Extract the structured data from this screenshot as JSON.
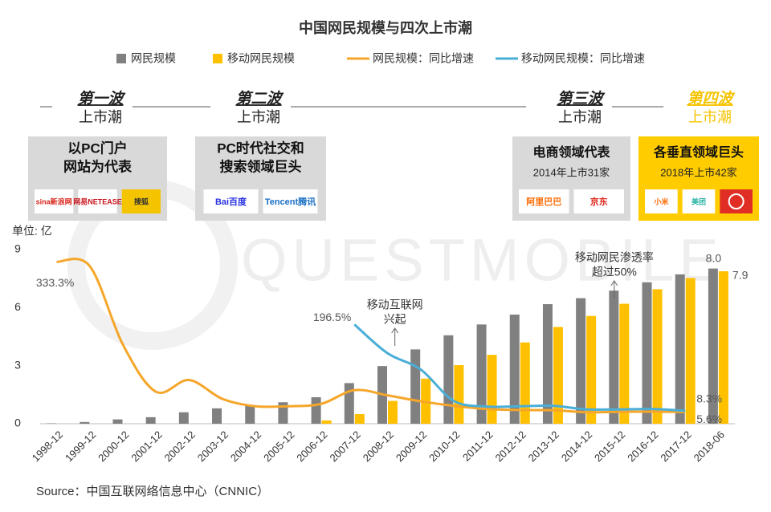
{
  "chart_data": {
    "type": "bar_line",
    "title": "中国网民规模与四次上市潮",
    "y_unit": "单位: 亿",
    "watermark": "QUESTMOBILE",
    "source": "Source：中国互联网络信息中心（CNNIC）",
    "categories": [
      "1998-12",
      "1999-12",
      "2000-12",
      "2001-12",
      "2002-12",
      "2003-12",
      "2004-12",
      "2005-12",
      "2006-12",
      "2007-12",
      "2008-12",
      "2009-12",
      "2010-12",
      "2011-12",
      "2012-12",
      "2013-12",
      "2014-12",
      "2015-12",
      "2016-12",
      "2017-12",
      "2018-06"
    ],
    "ylim": [
      0,
      9
    ],
    "yticks": [
      0,
      3,
      6,
      9
    ],
    "y2lim": [
      -20,
      360
    ],
    "series": [
      {
        "name": "网民规模",
        "kind": "bar",
        "color": "#808080",
        "values": [
          0.021,
          0.089,
          0.225,
          0.337,
          0.591,
          0.795,
          0.94,
          1.11,
          1.37,
          2.1,
          2.98,
          3.84,
          4.57,
          5.13,
          5.64,
          6.18,
          6.49,
          6.88,
          7.31,
          7.72,
          8.02
        ],
        "value_labels": [
          null,
          null,
          null,
          null,
          null,
          null,
          null,
          null,
          null,
          null,
          null,
          null,
          null,
          null,
          null,
          null,
          null,
          null,
          null,
          null,
          "8.0"
        ]
      },
      {
        "name": "移动网民规模",
        "kind": "bar",
        "color": "#ffc000",
        "values": [
          null,
          null,
          null,
          null,
          null,
          null,
          null,
          null,
          0.17,
          0.5,
          1.18,
          2.33,
          3.03,
          3.56,
          4.2,
          5.0,
          5.57,
          6.2,
          6.95,
          7.53,
          7.88
        ],
        "value_labels": [
          null,
          null,
          null,
          null,
          null,
          null,
          null,
          null,
          null,
          null,
          null,
          null,
          null,
          null,
          null,
          null,
          null,
          null,
          null,
          null,
          "7.9"
        ]
      },
      {
        "name": "网民规模：同比增速",
        "kind": "line",
        "axis": "y2",
        "color": "#f5a62a",
        "values": [
          333.3,
          323.8,
          152.8,
          49.8,
          75.4,
          34.5,
          18.2,
          18.1,
          23.4,
          53.3,
          41.9,
          28.9,
          19.0,
          12.2,
          9.9,
          9.5,
          5.0,
          6.1,
          6.2,
          5.6,
          null
        ],
        "value_labels": [
          "333.3%",
          null,
          null,
          null,
          null,
          null,
          null,
          null,
          null,
          null,
          null,
          null,
          null,
          null,
          null,
          null,
          null,
          null,
          null,
          "5.6%",
          null
        ]
      },
      {
        "name": "移动网民规模：同比增速",
        "kind": "line",
        "axis": "y2",
        "color": "#4aaed6",
        "values": [
          null,
          null,
          null,
          null,
          null,
          null,
          null,
          null,
          null,
          196.5,
          133.8,
          98.5,
          29.9,
          17.5,
          18.1,
          19.1,
          11.4,
          11.3,
          12.1,
          8.3,
          null
        ],
        "value_labels": [
          null,
          null,
          null,
          null,
          null,
          null,
          null,
          null,
          null,
          "196.5%",
          null,
          null,
          null,
          null,
          null,
          null,
          null,
          null,
          null,
          "8.3%",
          null
        ]
      }
    ],
    "annotations": [
      {
        "lines": [
          "移动互联网",
          "兴起"
        ],
        "category": 11
      },
      {
        "lines": [
          "移动网民渗透率",
          "超过50%"
        ],
        "category": 17
      }
    ]
  },
  "waves": [
    {
      "title": "第一波",
      "subtitle": "上市潮",
      "box_lines": [
        "以PC门户",
        "网站为代表"
      ],
      "logos": [
        "sina新浪网",
        "网易NETEASE",
        "搜狐"
      ]
    },
    {
      "title": "第二波",
      "subtitle": "上市潮",
      "box_lines": [
        "PC时代社交和",
        "搜索领域巨头"
      ],
      "logos": [
        "Bai百度",
        "Tencent腾讯"
      ]
    },
    {
      "title": "第三波",
      "subtitle": "上市潮",
      "box_lines": [
        "电商领域代表"
      ],
      "note": "2014年上市31家",
      "logos": [
        "阿里巴巴",
        "京东"
      ]
    },
    {
      "title": "第四波",
      "subtitle": "上市潮",
      "box_lines": [
        "各垂直领域巨头"
      ],
      "note": "2018年上市42家",
      "logos": [
        "小米",
        "美团"
      ]
    }
  ]
}
